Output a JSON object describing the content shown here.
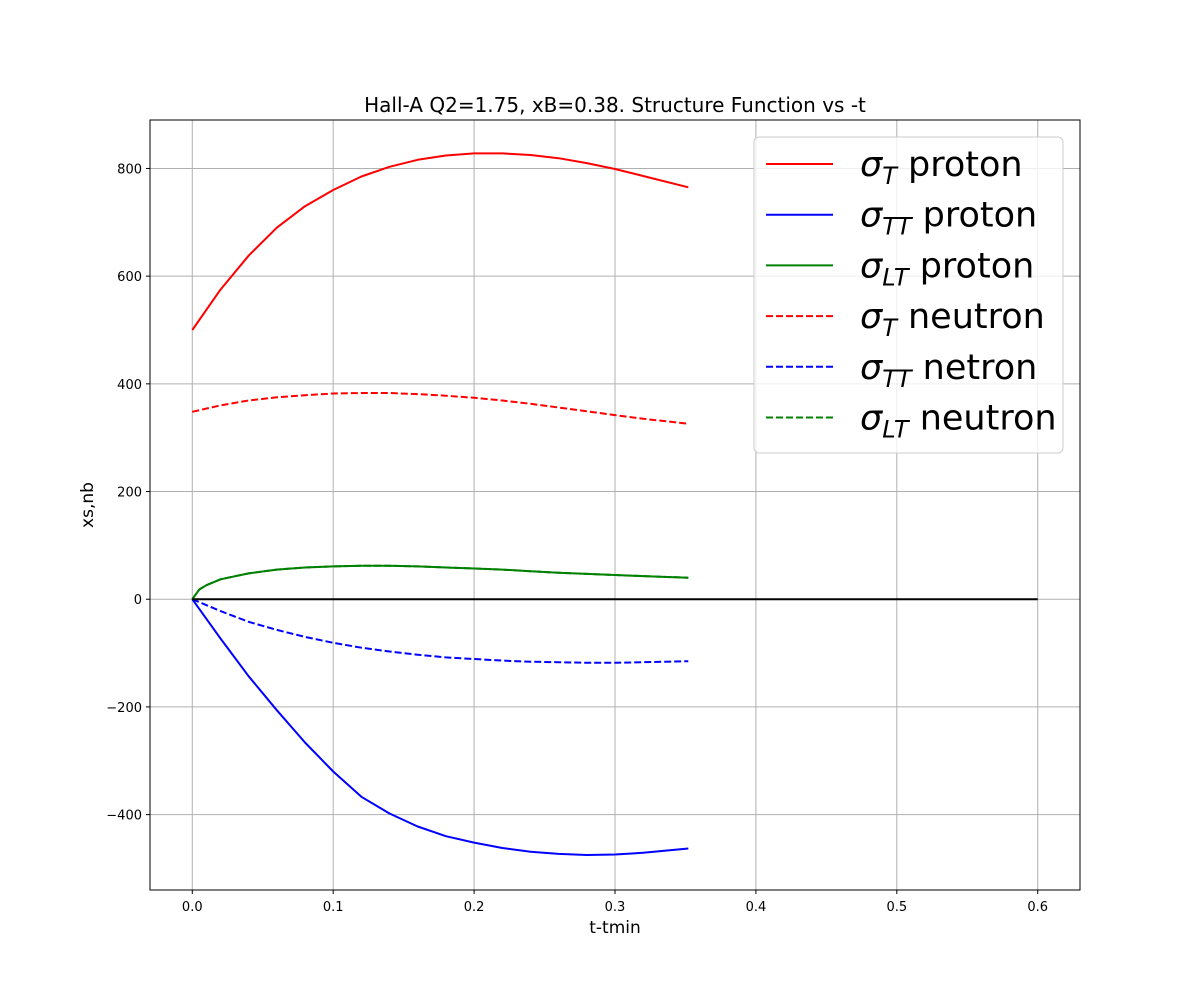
{
  "chart_data": {
    "type": "line",
    "title": "Hall-A Q2=1.75, xB=0.38. Structure Function vs -t",
    "xlabel": "t-tmin",
    "ylabel": "xs,nb",
    "xlim": [
      -0.03,
      0.63
    ],
    "ylim": [
      -540,
      890
    ],
    "xticks": [
      0.0,
      0.1,
      0.2,
      0.3,
      0.4,
      0.5,
      0.6
    ],
    "xtick_labels": [
      "0.0",
      "0.1",
      "0.2",
      "0.3",
      "0.4",
      "0.5",
      "0.6"
    ],
    "yticks": [
      -400,
      -200,
      0,
      200,
      400,
      600,
      800
    ],
    "ytick_labels": [
      "−400",
      "−200",
      "0",
      "200",
      "400",
      "600",
      "800"
    ],
    "grid": true,
    "legend_position": "top-right",
    "series": [
      {
        "name": "σT  proton",
        "sym": "σ",
        "sub": "T",
        "suffix": "  proton",
        "color": "#ff0000",
        "dash": "solid",
        "x": [
          0.0,
          0.02,
          0.04,
          0.06,
          0.08,
          0.1,
          0.12,
          0.14,
          0.16,
          0.18,
          0.2,
          0.22,
          0.24,
          0.26,
          0.28,
          0.3,
          0.32,
          0.352
        ],
        "y": [
          500,
          575,
          638,
          690,
          730,
          760,
          785,
          803,
          816,
          824,
          828,
          828,
          825,
          819,
          810,
          799,
          786,
          765
        ]
      },
      {
        "name": "σTT proton",
        "sym": "σ",
        "sub": "TT",
        "suffix": " proton",
        "color": "#0000ff",
        "dash": "solid",
        "x": [
          0.0,
          0.02,
          0.04,
          0.06,
          0.08,
          0.1,
          0.12,
          0.14,
          0.16,
          0.18,
          0.2,
          0.22,
          0.24,
          0.26,
          0.28,
          0.3,
          0.32,
          0.352
        ],
        "y": [
          0,
          -73,
          -143,
          -206,
          -266,
          -320,
          -367,
          -398,
          -422,
          -440,
          -452,
          -462,
          -469,
          -473,
          -475,
          -474,
          -471,
          -463
        ]
      },
      {
        "name": "σLT proton",
        "sym": "σ",
        "sub": "LT",
        "suffix": " proton",
        "color": "#008000",
        "dash": "solid",
        "x": [
          0.0,
          0.005,
          0.01,
          0.02,
          0.04,
          0.06,
          0.08,
          0.1,
          0.12,
          0.14,
          0.16,
          0.18,
          0.2,
          0.22,
          0.24,
          0.26,
          0.28,
          0.3,
          0.32,
          0.352
        ],
        "y": [
          0,
          18,
          26,
          37,
          48,
          55,
          59,
          61,
          62,
          62,
          61,
          59,
          57,
          55,
          52,
          49,
          47,
          45,
          43,
          40
        ]
      },
      {
        "name": "σT neutron",
        "sym": "σ",
        "sub": "T",
        "suffix": " neutron",
        "color": "#ff0000",
        "dash": "dashed",
        "x": [
          0.0,
          0.02,
          0.04,
          0.06,
          0.08,
          0.1,
          0.12,
          0.14,
          0.16,
          0.18,
          0.2,
          0.22,
          0.24,
          0.26,
          0.28,
          0.3,
          0.32,
          0.352
        ],
        "y": [
          348,
          360,
          369,
          375,
          379,
          382,
          383,
          383,
          381,
          378,
          374,
          369,
          363,
          356,
          349,
          342,
          335,
          326
        ]
      },
      {
        "name": "σTT netron",
        "sym": "σ",
        "sub": "TT",
        "suffix": " netron",
        "color": "#0000ff",
        "dash": "dashed",
        "x": [
          0.0,
          0.02,
          0.04,
          0.06,
          0.08,
          0.1,
          0.12,
          0.14,
          0.16,
          0.18,
          0.2,
          0.22,
          0.24,
          0.26,
          0.28,
          0.3,
          0.32,
          0.352
        ],
        "y": [
          0,
          -22,
          -42,
          -57,
          -70,
          -81,
          -90,
          -97,
          -103,
          -108,
          -111,
          -114,
          -116,
          -117,
          -118,
          -118,
          -117,
          -115
        ]
      },
      {
        "name": "σLT neutron",
        "sym": "σ",
        "sub": "LT",
        "suffix": " neutron",
        "color": "#008000",
        "dash": "dashed",
        "x": [
          0.0,
          0.005,
          0.01,
          0.02,
          0.04,
          0.06,
          0.08,
          0.1,
          0.12,
          0.14,
          0.16,
          0.18,
          0.2,
          0.22,
          0.24,
          0.26,
          0.28,
          0.3,
          0.32,
          0.352
        ],
        "y": [
          0,
          18,
          26,
          37,
          48,
          55,
          59,
          61,
          62,
          62,
          61,
          59,
          57,
          55,
          52,
          49,
          47,
          45,
          43,
          40
        ]
      },
      {
        "name": "",
        "color": "#000000",
        "dash": "solid",
        "in_legend": false,
        "x": [
          0.0,
          0.6
        ],
        "y": [
          0,
          0
        ]
      }
    ]
  }
}
